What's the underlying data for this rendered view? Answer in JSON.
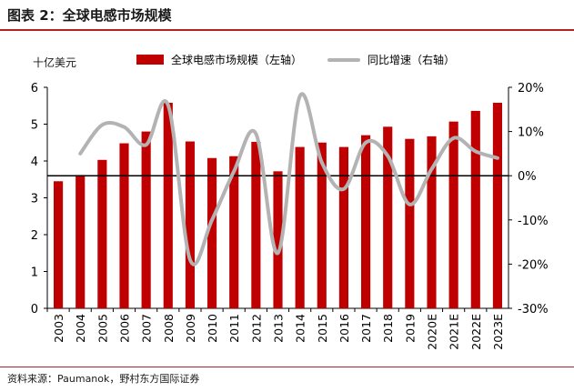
{
  "header": {
    "title": "图表 2：全球电感市场规模",
    "source": "资料来源：Paumanok，野村东方国际证券"
  },
  "legend": {
    "bar_label": "全球电感市场规模（左轴）",
    "line_label": "同比增速（右轴）"
  },
  "axes": {
    "left_unit": "十亿美元"
  },
  "colors": {
    "bar": "#c00000",
    "line": "#b3b3b3",
    "zero_line": "#000000",
    "accent_rule": "#b22222"
  },
  "chart_data": {
    "type": "bar+line",
    "categories": [
      "2003",
      "2004",
      "2005",
      "2006",
      "2007",
      "2008",
      "2009",
      "2010",
      "2011",
      "2012",
      "2013",
      "2014",
      "2015",
      "2016",
      "2017",
      "2018",
      "2019",
      "2020E",
      "2021E",
      "2022E",
      "2023E"
    ],
    "series": [
      {
        "name": "全球电感市场规模（左轴）",
        "type": "bar",
        "axis": "left",
        "values": [
          3.45,
          3.62,
          4.03,
          4.48,
          4.8,
          5.58,
          4.53,
          4.08,
          4.13,
          4.52,
          3.72,
          4.38,
          4.5,
          4.38,
          4.7,
          4.93,
          4.6,
          4.67,
          5.07,
          5.36,
          5.58
        ]
      },
      {
        "name": "同比增速（右轴）",
        "type": "line",
        "axis": "right",
        "unit": "%",
        "values": [
          null,
          5,
          11.5,
          11,
          7,
          16,
          -19,
          -10,
          1,
          9.5,
          -17.5,
          18,
          3,
          -3,
          7.5,
          4.5,
          -6.5,
          1.5,
          8.5,
          5.5,
          4
        ]
      }
    ],
    "left_axis": {
      "min": 0,
      "max": 6,
      "ticks": [
        "0",
        "1",
        "2",
        "3",
        "4",
        "5",
        "6"
      ]
    },
    "right_axis": {
      "min": -30,
      "max": 20,
      "ticks": [
        "-30%",
        "-20%",
        "-10%",
        "0%",
        "10%",
        "20%"
      ]
    },
    "grid": false,
    "legend_position": "top"
  }
}
